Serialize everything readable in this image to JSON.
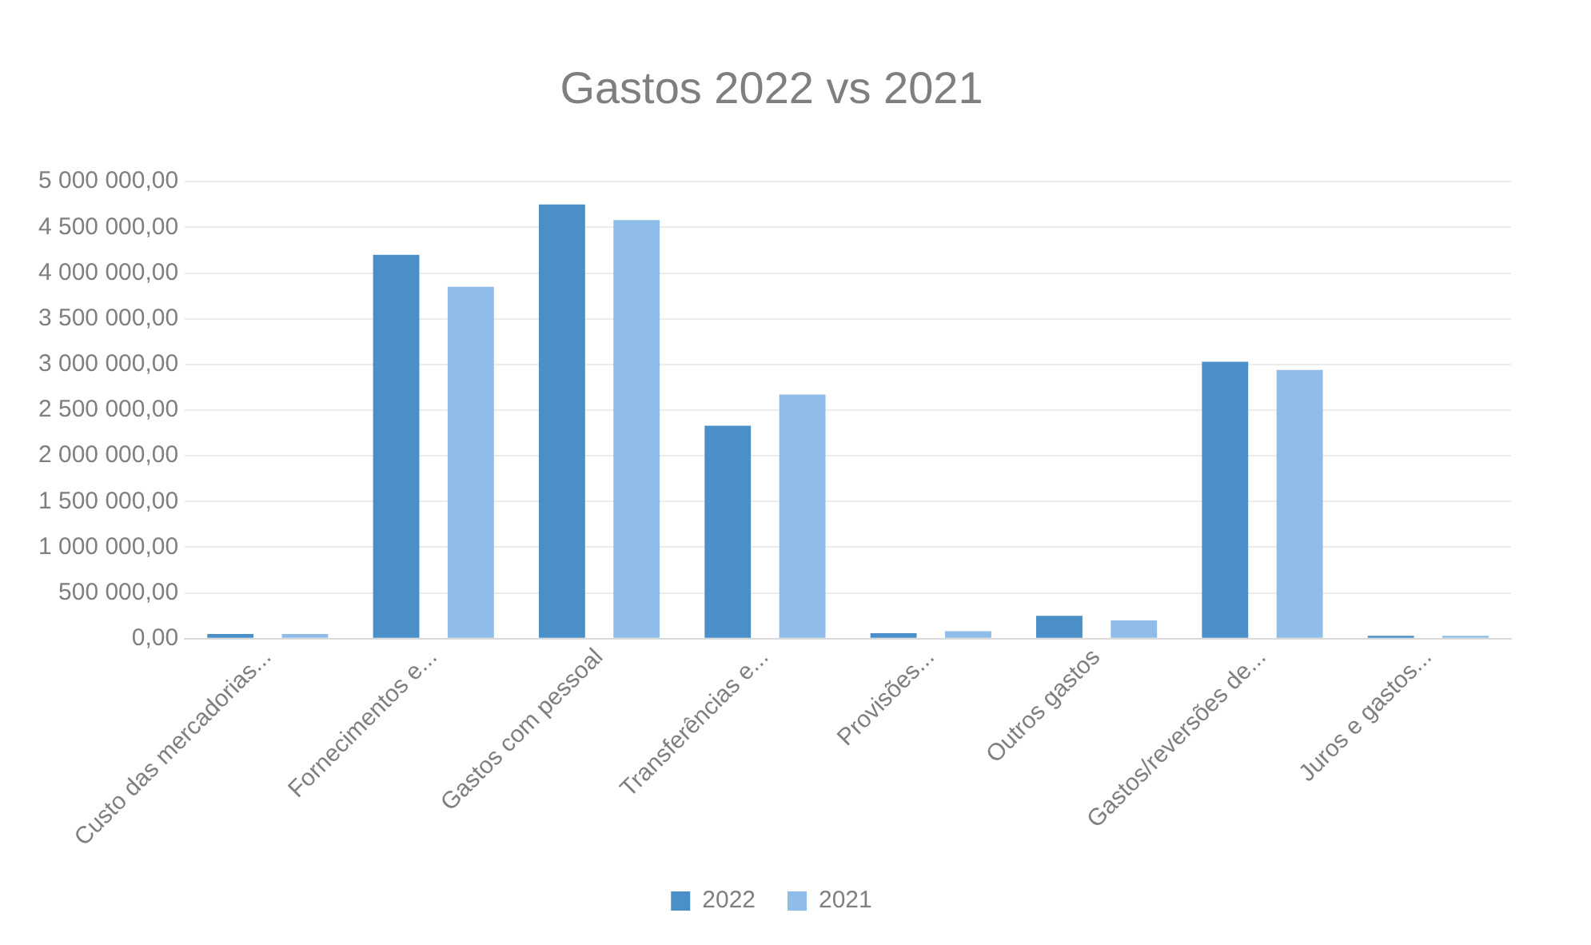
{
  "chart_data": {
    "type": "bar",
    "title": "Gastos 2022 vs 2021",
    "categories": [
      "Custo das mercadorias...",
      "Fornecimentos e...",
      "Gastos com pessoal",
      "Transferências e...",
      "Provisões...",
      "Outros gastos",
      "Gastos/reversões de...",
      "Juros e gastos..."
    ],
    "series": [
      {
        "name": "2022",
        "color": "#4a8fc8",
        "values": [
          50000,
          4200000,
          4750000,
          2330000,
          60000,
          250000,
          3030000,
          30000
        ]
      },
      {
        "name": "2021",
        "color": "#8fbce8",
        "values": [
          50000,
          3850000,
          4580000,
          2670000,
          80000,
          200000,
          2940000,
          30000
        ]
      }
    ],
    "ylim": [
      0,
      5000000
    ],
    "yticks": [
      {
        "value": 0,
        "label": "0,00"
      },
      {
        "value": 500000,
        "label": "500 000,00"
      },
      {
        "value": 1000000,
        "label": "1 000 000,00"
      },
      {
        "value": 1500000,
        "label": "1 500 000,00"
      },
      {
        "value": 2000000,
        "label": "2 000 000,00"
      },
      {
        "value": 2500000,
        "label": "2 500 000,00"
      },
      {
        "value": 3000000,
        "label": "3 000 000,00"
      },
      {
        "value": 3500000,
        "label": "3 500 000,00"
      },
      {
        "value": 4000000,
        "label": "4 000 000,00"
      },
      {
        "value": 4500000,
        "label": "4 500 000,00"
      },
      {
        "value": 5000000,
        "label": "5 000 000,00"
      }
    ],
    "grid": "y",
    "legend": "bottom"
  }
}
